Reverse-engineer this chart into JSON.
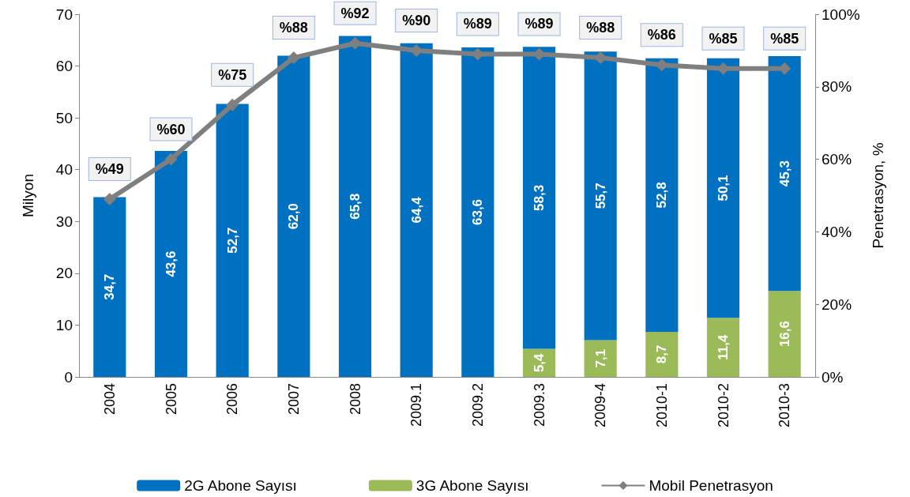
{
  "chart_data": {
    "type": "bar",
    "stacked": true,
    "categories": [
      "2004",
      "2005",
      "2006",
      "2007",
      "2008",
      "2009.1",
      "2009.2",
      "2009.3",
      "2009-4",
      "2010-1",
      "2010-2",
      "2010-3"
    ],
    "ylabel": "Milyon",
    "y2label": "Penetrasyon, %",
    "ylim": [
      0,
      70
    ],
    "yticks": [
      0,
      10,
      20,
      30,
      40,
      50,
      60,
      70
    ],
    "y2lim": [
      0,
      100
    ],
    "y2ticks": [
      {
        "value": 0,
        "label": "0%"
      },
      {
        "value": 20,
        "label": "20%"
      },
      {
        "value": 40,
        "label": "40%"
      },
      {
        "value": 60,
        "label": "60%"
      },
      {
        "value": 80,
        "label": "80%"
      },
      {
        "value": 100,
        "label": "100%"
      }
    ],
    "series": [
      {
        "name": "3G Abone Sayısı",
        "color": "#9bbb59",
        "values": [
          null,
          null,
          null,
          null,
          null,
          null,
          null,
          5.4,
          7.1,
          8.7,
          11.4,
          16.6
        ],
        "value_labels": [
          null,
          null,
          null,
          null,
          null,
          null,
          null,
          "5,4",
          "7,1",
          "8,7",
          "11,4",
          "16,6"
        ]
      },
      {
        "name": "2G Abone Sayısı",
        "color": "#0070c0",
        "values": [
          34.7,
          43.6,
          52.7,
          62.0,
          65.8,
          64.4,
          63.6,
          58.3,
          55.7,
          52.8,
          50.1,
          45.3
        ],
        "value_labels": [
          "34,7",
          "43,6",
          "52,7",
          "62,0",
          "65,8",
          "64,4",
          "63,6",
          "58,3",
          "55,7",
          "52,8",
          "50,1",
          "45,3"
        ]
      },
      {
        "name": "Mobil Penetrasyon",
        "type": "line",
        "axis": "y2",
        "color": "#7f7f7f",
        "marker": "diamond",
        "values": [
          49,
          60,
          75,
          88,
          92,
          90,
          89,
          89,
          88,
          86,
          85,
          85
        ],
        "value_labels": [
          "%49",
          "%60",
          "%75",
          "%88",
          "%92",
          "%90",
          "%89",
          "%89",
          "%88",
          "%86",
          "%85",
          "%85"
        ]
      }
    ],
    "legend": "bottom",
    "grid": false
  }
}
